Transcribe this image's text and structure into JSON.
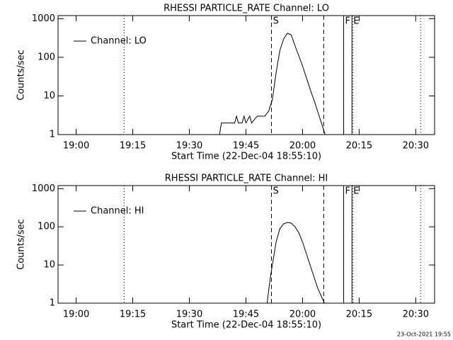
{
  "chart_data": [
    {
      "type": "line",
      "title": "RHESSI PARTICLE_RATE Channel: LO",
      "x_label": "Start Time (22-Dec-04 18:55:10)",
      "y_label": "Counts/sec",
      "log_y": true,
      "legend": "upper left",
      "xlim": [
        1135.2,
        1235
      ],
      "xticks": [
        {
          "value": 1140,
          "label": "19:00"
        },
        {
          "value": 1155,
          "label": "19:15"
        },
        {
          "value": 1170,
          "label": "19:30"
        },
        {
          "value": 1185,
          "label": "19:45"
        },
        {
          "value": 1200,
          "label": "20:00"
        },
        {
          "value": 1215,
          "label": "20:15"
        },
        {
          "value": 1230,
          "label": "20:30"
        }
      ],
      "ylim": [
        1,
        1200
      ],
      "yticks": [
        1,
        10,
        100,
        1000
      ],
      "markers": [
        {
          "x": 1152.75,
          "style": "dotted"
        },
        {
          "x": 1191.75,
          "style": "dashed",
          "label": "S"
        },
        {
          "x": 1205.6,
          "style": "dashed"
        },
        {
          "x": 1210.9,
          "style": "solid",
          "label": "F"
        },
        {
          "x": 1213.1,
          "style": "solid",
          "label": "E"
        },
        {
          "x": 1213.4,
          "style": "dotted"
        },
        {
          "x": 1231.3,
          "style": "dotted"
        }
      ],
      "series": [
        {
          "name": "Channel: LO",
          "color": "#000000",
          "x": [
            1178,
            1178.5,
            1182,
            1182.5,
            1183,
            1184,
            1184.5,
            1185,
            1186,
            1186.5,
            1188,
            1189,
            1190,
            1191,
            1192,
            1193,
            1194,
            1195,
            1196,
            1197,
            1198,
            1199,
            1200,
            1201,
            1202,
            1203,
            1204,
            1205,
            1206
          ],
          "values": [
            1,
            2,
            2,
            3,
            2,
            2,
            3,
            2,
            3,
            2,
            3,
            3,
            3,
            4,
            8,
            40,
            150,
            300,
            420,
            380,
            200,
            110,
            60,
            30,
            15,
            8,
            4,
            2,
            1
          ]
        }
      ]
    },
    {
      "type": "line",
      "title": "RHESSI PARTICLE_RATE Channel: HI",
      "x_label": "Start Time (22-Dec-04 18:55:10)",
      "y_label": "Counts/sec",
      "log_y": true,
      "legend": "upper left",
      "xlim": [
        1135.2,
        1235
      ],
      "xticks": [
        {
          "value": 1140,
          "label": "19:00"
        },
        {
          "value": 1155,
          "label": "19:15"
        },
        {
          "value": 1170,
          "label": "19:30"
        },
        {
          "value": 1185,
          "label": "19:45"
        },
        {
          "value": 1200,
          "label": "20:00"
        },
        {
          "value": 1215,
          "label": "20:15"
        },
        {
          "value": 1230,
          "label": "20:30"
        }
      ],
      "ylim": [
        1,
        1200
      ],
      "yticks": [
        1,
        10,
        100,
        1000
      ],
      "markers": [
        {
          "x": 1152.75,
          "style": "dotted"
        },
        {
          "x": 1191.75,
          "style": "dashed",
          "label": "S"
        },
        {
          "x": 1205.6,
          "style": "dashed"
        },
        {
          "x": 1210.9,
          "style": "solid",
          "label": "F"
        },
        {
          "x": 1213.1,
          "style": "solid",
          "label": "E"
        },
        {
          "x": 1213.4,
          "style": "dotted"
        },
        {
          "x": 1231.3,
          "style": "dotted"
        }
      ],
      "series": [
        {
          "name": "Channel: HI",
          "color": "#000000",
          "x": [
            1190.6,
            1191.5,
            1192,
            1193,
            1194,
            1195,
            1196,
            1197,
            1198,
            1199,
            1200,
            1201,
            1202,
            1203,
            1204,
            1205,
            1205.8
          ],
          "values": [
            1,
            5,
            10,
            40,
            90,
            120,
            130,
            125,
            100,
            70,
            40,
            20,
            10,
            5,
            2.5,
            1.5,
            1
          ]
        }
      ]
    }
  ],
  "footer": "23-Oct-2021 19:55"
}
